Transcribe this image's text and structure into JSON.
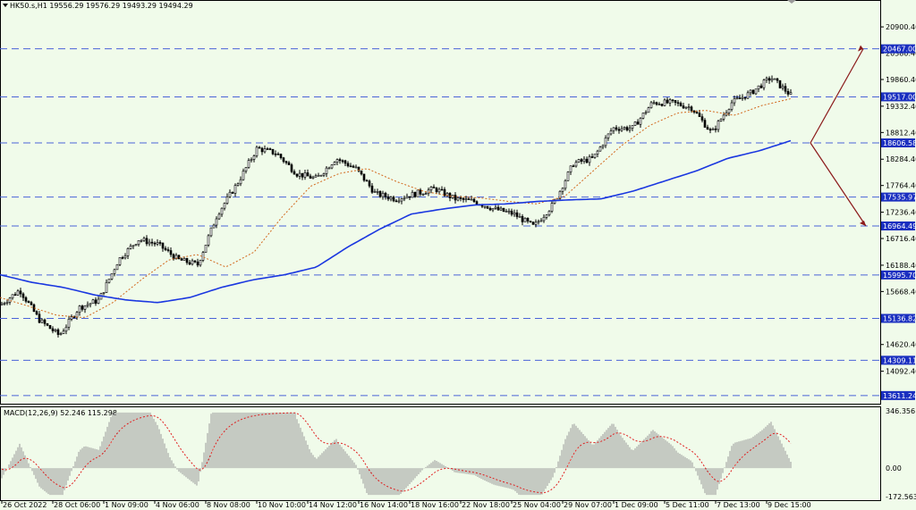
{
  "header": {
    "symbol_line": "HK50.s,H1  19556.29 19576.29 19493.29 19494.29",
    "macd_label": "MACD(12,26,9) 52.246 115.298"
  },
  "colors": {
    "background": "#f0fbea",
    "candle": "#000000",
    "ma_long": "#1a37e0",
    "ma_short": "#d2691e",
    "level_line": "#4a63d8",
    "level_tag": "#1a2fc0",
    "arrow": "#8b1a1a",
    "histogram": "#9a9a9a",
    "signal": "#e02020"
  },
  "chart_data": [
    {
      "type": "candlestick",
      "title": "HK50.s,H1",
      "ohlc_last": {
        "open": 19556.29,
        "high": 19576.29,
        "low": 19493.29,
        "close": 19494.29
      },
      "ylim": [
        13450,
        21220
      ],
      "y_ticks": [
        20900.4,
        20380.4,
        19860.4,
        19332.4,
        18812.4,
        18284.4,
        17764.4,
        17236.4,
        16716.4,
        16188.4,
        15668.4,
        15140.4,
        14620.4,
        14092.4
      ],
      "x_ticks": [
        "26 Oct 2022",
        "28 Oct 06:00",
        "1 Nov 09:00",
        "4 Nov 06:00",
        "8 Nov 08:00",
        "10 Nov 10:00",
        "14 Nov 12:00",
        "16 Nov 14:00",
        "18 Nov 16:00",
        "22 Nov 18:00",
        "25 Nov 04:00",
        "29 Nov 07:00",
        "1 Dec 09:00",
        "5 Dec 11:00",
        "7 Dec 13:00",
        "9 Dec 15:00"
      ],
      "levels": [
        20467.0,
        19517.0,
        18606.58,
        17535.97,
        16964.49,
        15995.7,
        15136.82,
        14309.11,
        13611.24
      ],
      "close_path": [
        15400,
        15700,
        15100,
        14800,
        15350,
        15500,
        16300,
        16700,
        16600,
        16300,
        16200,
        17200,
        17800,
        18500,
        18400,
        18000,
        17900,
        18300,
        18100,
        17600,
        17500,
        17600,
        17700,
        17500,
        17450,
        17300,
        17200,
        16950,
        17400,
        18200,
        18300,
        18900,
        18900,
        19400,
        19400,
        19300,
        18800,
        19400,
        19600,
        19900,
        19550
      ],
      "ma_long_path": [
        16000,
        15850,
        15750,
        15600,
        15500,
        15450,
        15550,
        15750,
        15900,
        16000,
        16150,
        16550,
        16900,
        17200,
        17300,
        17380,
        17400,
        17450,
        17480,
        17500,
        17650,
        17850,
        18050,
        18300,
        18450,
        18650
      ],
      "ma_short_path": [
        15550,
        15380,
        15200,
        15150,
        15450,
        15900,
        16300,
        16400,
        16150,
        16450,
        17150,
        17750,
        18000,
        18100,
        17850,
        17650,
        17550,
        17520,
        17450,
        17400,
        17550,
        18050,
        18550,
        18950,
        19200,
        19250,
        19150,
        19350,
        19480
      ],
      "projection": {
        "origin": 18606.58,
        "up_target": 20467.0,
        "down_target": 16964.49
      }
    },
    {
      "type": "bar",
      "title": "MACD(12,26,9)",
      "values_summary": {
        "macd": 52.246,
        "signal": 115.298
      },
      "ylim": [
        -172.563,
        346.356
      ],
      "y_ticks": [
        346.356,
        0.0,
        -172.563
      ]
    }
  ]
}
